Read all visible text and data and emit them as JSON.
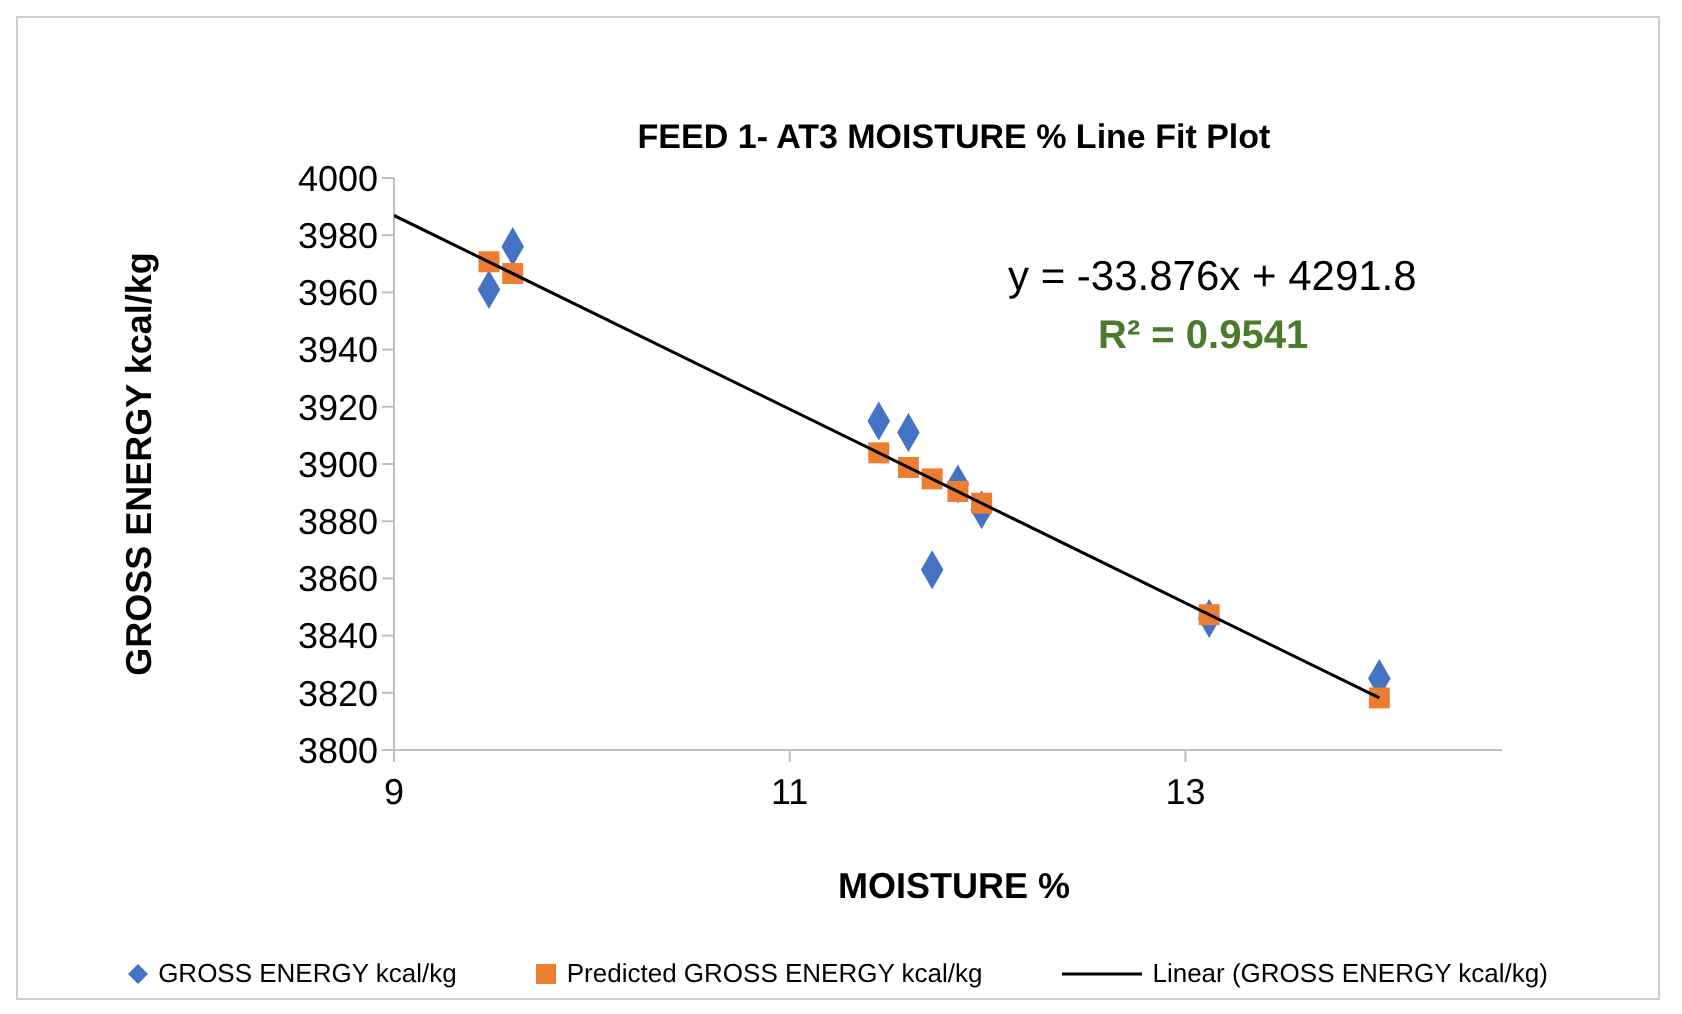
{
  "chart_data": {
    "type": "scatter",
    "title": "FEED 1- AT3 MOISTURE % Line Fit  Plot",
    "xlabel": "MOISTURE %",
    "ylabel": "GROSS ENERGY kcal/kg",
    "x": [
      9.48,
      9.6,
      11.45,
      11.6,
      11.72,
      11.85,
      11.97,
      13.12,
      13.98
    ],
    "series": [
      {
        "name": "GROSS ENERGY kcal/kg",
        "type": "scatter",
        "marker": "diamond",
        "color": "#4472c4",
        "values": [
          3961,
          3976,
          3915,
          3911,
          3863,
          3893,
          3884,
          3846,
          3825
        ]
      },
      {
        "name": "Predicted GROSS ENERGY kcal/kg",
        "type": "scatter",
        "marker": "square",
        "color": "#ed7d31",
        "values": [
          3970.7,
          3966.6,
          3903.9,
          3898.8,
          3894.8,
          3890.4,
          3886.3,
          3847.3,
          3818.2
        ]
      },
      {
        "name": "Linear (GROSS ENERGY kcal/kg)",
        "type": "line",
        "marker": "none",
        "color": "#000000",
        "x": [
          9,
          13.98
        ],
        "values": [
          3986.9,
          3818.2
        ]
      }
    ],
    "annotations": [
      "y = -33.876x + 4291.8",
      "R² = 0.9541"
    ],
    "xlim": [
      9,
      14.6
    ],
    "xticks": [
      9,
      11,
      13
    ],
    "ylim": [
      3800,
      4000
    ],
    "yticks": [
      3800,
      3820,
      3840,
      3860,
      3880,
      3900,
      3920,
      3940,
      3960,
      3980,
      4000
    ],
    "grid": false,
    "legend": "bottom"
  }
}
